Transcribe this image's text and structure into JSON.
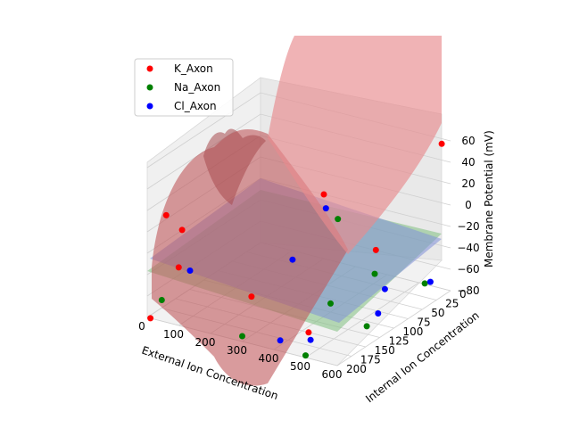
{
  "chart_data": {
    "type": "surface3d",
    "xlabel": "External Ion Concentration",
    "ylabel": "Internal Ion Concentration",
    "zlabel": "Membrane Potential (mV)",
    "xlim": [
      0,
      600
    ],
    "ylim": [
      0,
      200
    ],
    "zlim": [
      -80,
      60
    ],
    "xticks": [
      "0",
      "100",
      "200",
      "300",
      "400",
      "500",
      "600"
    ],
    "yticks": [
      "0",
      "25",
      "50",
      "75",
      "100",
      "125",
      "150",
      "175",
      "200"
    ],
    "zticks": [
      "60",
      "40",
      "20",
      "0",
      "−20",
      "−40",
      "−60",
      "−80"
    ],
    "grid": true,
    "legend": "top-left",
    "series": [
      {
        "name": "K_Axon",
        "color": "#ff0000",
        "surface_color": "#e8787a",
        "points": [
          {
            "x": 590,
            "y": 10,
            "z": 60
          },
          {
            "x": 400,
            "y": 20,
            "z": -50
          },
          {
            "x": 10,
            "y": 150,
            "z": -50
          },
          {
            "x": 200,
            "y": 0,
            "z": -20
          },
          {
            "x": 110,
            "y": 200,
            "z": 10
          },
          {
            "x": 60,
            "y": 200,
            "z": 20
          },
          {
            "x": 10,
            "y": 200,
            "z": -90
          },
          {
            "x": 240,
            "y": 150,
            "z": -60
          },
          {
            "x": 420,
            "y": 150,
            "z": -80
          }
        ]
      },
      {
        "name": "Na_Axon",
        "color": "#008000",
        "surface_color": "#7fc07f",
        "points": [
          {
            "x": 590,
            "y": 40,
            "z": -60
          },
          {
            "x": 400,
            "y": 100,
            "z": -72
          },
          {
            "x": 450,
            "y": 50,
            "z": -58
          },
          {
            "x": 550,
            "y": 120,
            "z": -75
          },
          {
            "x": 10,
            "y": 180,
            "z": -70
          },
          {
            "x": 280,
            "y": 20,
            "z": -30
          },
          {
            "x": 500,
            "y": 200,
            "z": -78
          },
          {
            "x": 300,
            "y": 200,
            "z": -75
          }
        ]
      },
      {
        "name": "Cl_Axon",
        "color": "#0000ff",
        "surface_color": "#7f7fe0",
        "points": [
          {
            "x": 590,
            "y": 30,
            "z": -62
          },
          {
            "x": 500,
            "y": 60,
            "z": -65
          },
          {
            "x": 550,
            "y": 100,
            "z": -70
          },
          {
            "x": 10,
            "y": 130,
            "z": -60
          },
          {
            "x": 480,
            "y": 180,
            "z": -72
          },
          {
            "x": 420,
            "y": 200,
            "z": -70
          },
          {
            "x": 260,
            "y": 30,
            "z": -18
          },
          {
            "x": 280,
            "y": 100,
            "z": -40
          }
        ]
      }
    ]
  }
}
